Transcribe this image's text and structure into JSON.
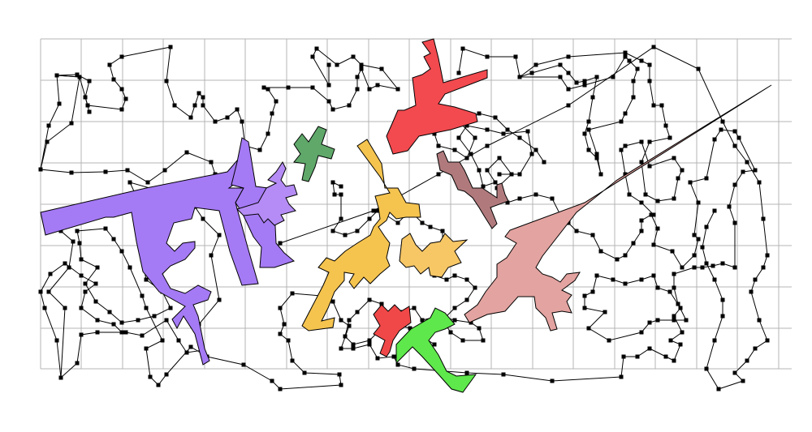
{
  "colors": {
    "background": "#ffffff",
    "grid": "#b4b4b4",
    "path": "#000000",
    "nodes": "#000000",
    "shapes": {
      "purple": "#a57af5",
      "lavender": "#b58cf5",
      "green_small": "#5fa86a",
      "red": "#f24a4f",
      "gold": "#f5c44f",
      "gold_light": "#f7c766",
      "mauve": "#b07a7d",
      "pink": "#e3a3a0",
      "red_small": "#f04848",
      "green": "#5ee84b"
    }
  }
}
